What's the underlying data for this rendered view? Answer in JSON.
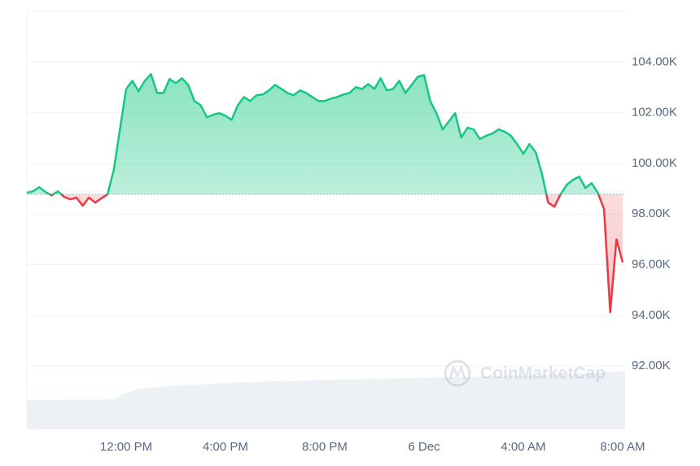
{
  "chart_data": {
    "type": "baseline-line",
    "watermark": "CoinMarketCap",
    "x": [
      8,
      8.25,
      8.5,
      8.75,
      9,
      9.25,
      9.5,
      9.75,
      10,
      10.25,
      10.5,
      10.75,
      11,
      11.25,
      11.5,
      11.75,
      12,
      12.25,
      12.5,
      12.75,
      13,
      13.25,
      13.5,
      13.75,
      14,
      14.25,
      14.5,
      14.75,
      15,
      15.25,
      15.5,
      15.75,
      16,
      16.25,
      16.5,
      16.75,
      17,
      17.25,
      17.5,
      17.75,
      18,
      18.25,
      18.5,
      18.75,
      19,
      19.25,
      19.5,
      19.75,
      20,
      20.25,
      20.5,
      20.75,
      21,
      21.25,
      21.5,
      21.75,
      22,
      22.25,
      22.5,
      22.75,
      23,
      23.25,
      23.5,
      23.75,
      24,
      24.25,
      24.5,
      24.75,
      25,
      25.25,
      25.5,
      25.75,
      26,
      26.25,
      26.5,
      26.75,
      27,
      27.25,
      27.5,
      27.75,
      28,
      28.25,
      28.5,
      28.75,
      29,
      29.25,
      29.5,
      29.75,
      30,
      30.25,
      30.5,
      30.75,
      31,
      31.25,
      31.5,
      31.75,
      32
    ],
    "values": [
      98840,
      98900,
      99060,
      98870,
      98740,
      98900,
      98680,
      98580,
      98650,
      98330,
      98650,
      98450,
      98620,
      98780,
      99740,
      101340,
      102940,
      103260,
      102850,
      103260,
      103520,
      102780,
      102780,
      103330,
      103170,
      103360,
      103100,
      102460,
      102300,
      101820,
      101920,
      101980,
      101880,
      101720,
      102300,
      102620,
      102460,
      102690,
      102720,
      102880,
      103100,
      102940,
      102780,
      102690,
      102880,
      102780,
      102620,
      102460,
      102460,
      102560,
      102620,
      102720,
      102780,
      103010,
      102940,
      103130,
      102940,
      103360,
      102880,
      102940,
      103260,
      102780,
      103100,
      103420,
      103490,
      102460,
      101980,
      101340,
      101660,
      101980,
      101020,
      101410,
      101340,
      100960,
      101090,
      101180,
      101340,
      101250,
      101090,
      100760,
      100380,
      100760,
      100440,
      99580,
      98450,
      98290,
      98780,
      99160,
      99350,
      99480,
      99030,
      99220,
      98840,
      98200,
      94130,
      97000,
      96100
    ],
    "baseline": 98780,
    "up_color": "#16c784",
    "down_color": "#ea3943",
    "xlim": [
      8,
      32.1
    ],
    "xticks": [
      {
        "value": 12,
        "label": "12:00 PM"
      },
      {
        "value": 16,
        "label": "4:00 PM"
      },
      {
        "value": 20,
        "label": "8:00 PM"
      },
      {
        "value": 24,
        "label": "6 Dec"
      },
      {
        "value": 28,
        "label": "4:00 AM"
      },
      {
        "value": 32,
        "label": "8:00 AM"
      }
    ],
    "ylim": [
      89500,
      106000
    ],
    "yticks": [
      {
        "value": 92000,
        "label": "92.00K"
      },
      {
        "value": 94000,
        "label": "94.00K"
      },
      {
        "value": 96000,
        "label": "96.00K"
      },
      {
        "value": 98000,
        "label": "98.00K"
      },
      {
        "value": 100000,
        "label": "100.00K"
      },
      {
        "value": 102000,
        "label": "102.00K"
      },
      {
        "value": 104000,
        "label": "104.00K"
      }
    ],
    "grid": true
  }
}
